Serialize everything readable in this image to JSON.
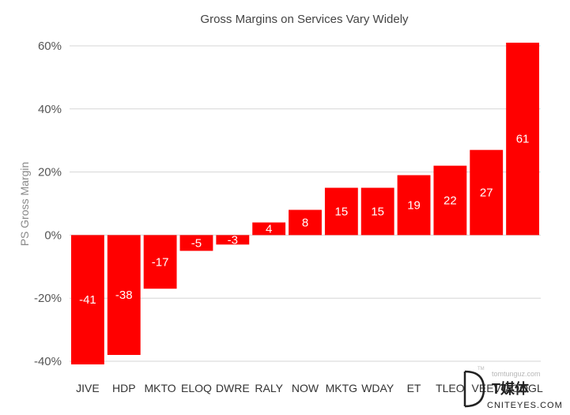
{
  "chart_data": {
    "type": "bar",
    "title": "Gross Margins on Services Vary Widely",
    "ylabel": "PS Gross Margin",
    "xlabel": "",
    "ylim": [
      -40,
      60
    ],
    "yticks": [
      "60%",
      "40%",
      "20%",
      "0%",
      "-20%",
      "-40%"
    ],
    "ytick_values": [
      60,
      40,
      20,
      0,
      -20,
      -40
    ],
    "grid": true,
    "categories": [
      "JIVE",
      "HDP",
      "MKTO",
      "ELOQ",
      "DWRE",
      "RALY",
      "NOW",
      "MKTG",
      "WDAY",
      "ET",
      "TLEO",
      "VEEV",
      "GOOGL"
    ],
    "values": [
      -41,
      -38,
      -17,
      -5,
      -3,
      4,
      8,
      15,
      15,
      19,
      22,
      27,
      61
    ],
    "bar_color": "#ff0000"
  },
  "watermark": {
    "site": "tomtunguz.com",
    "brand_cn": "T媒体",
    "brand_en": "CNITEYES.COM",
    "mark": "TM"
  }
}
